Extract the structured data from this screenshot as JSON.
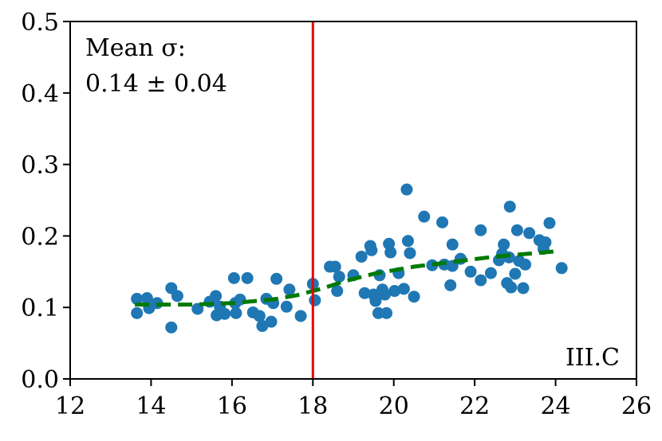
{
  "chart_data": {
    "type": "scatter",
    "xlim": [
      12,
      26
    ],
    "ylim": [
      0.0,
      0.5
    ],
    "xticks": [
      "12",
      "14",
      "16",
      "18",
      "20",
      "22",
      "24",
      "26"
    ],
    "yticks": [
      "0.0",
      "0.1",
      "0.2",
      "0.3",
      "0.4",
      "0.5"
    ],
    "annotation_lines": [
      "Mean σ:",
      "0.14 ± 0.04"
    ],
    "panel_label": "III.C",
    "vline_x": 18,
    "colors": {
      "points": "#1f77b4",
      "trend": "#007a00",
      "vline": "#e8000b"
    },
    "trend_line": {
      "style": "dashed",
      "x": [
        13.6,
        15.0,
        16.0,
        17.0,
        17.6,
        18.2,
        18.8,
        19.5,
        20.5,
        21.5,
        22.5,
        23.5,
        24.1
      ],
      "y": [
        0.104,
        0.104,
        0.106,
        0.111,
        0.117,
        0.126,
        0.137,
        0.147,
        0.157,
        0.164,
        0.171,
        0.176,
        0.179
      ]
    },
    "points": {
      "x": [
        13.65,
        13.65,
        13.9,
        13.95,
        14.15,
        14.5,
        14.5,
        14.65,
        15.15,
        15.45,
        15.6,
        15.62,
        15.7,
        15.82,
        16.05,
        16.08,
        16.1,
        16.2,
        16.38,
        16.52,
        16.68,
        16.75,
        16.85,
        16.97,
        17.02,
        17.1,
        17.35,
        17.42,
        17.7,
        18.0,
        18.05,
        18.42,
        18.55,
        18.6,
        18.65,
        19.0,
        19.2,
        19.28,
        19.42,
        19.45,
        19.5,
        19.55,
        19.62,
        19.65,
        19.72,
        19.78,
        19.82,
        19.88,
        19.92,
        20.02,
        20.12,
        20.25,
        20.32,
        20.35,
        20.4,
        20.5,
        20.75,
        20.95,
        21.2,
        21.25,
        21.4,
        21.45,
        21.45,
        21.65,
        21.9,
        22.15,
        22.15,
        22.4,
        22.6,
        22.68,
        22.72,
        22.8,
        22.85,
        22.87,
        22.9,
        23.0,
        23.05,
        23.1,
        23.2,
        23.25,
        23.35,
        23.6,
        23.7,
        23.75,
        23.85,
        24.15
      ],
      "y": [
        0.112,
        0.092,
        0.113,
        0.099,
        0.106,
        0.127,
        0.072,
        0.116,
        0.098,
        0.108,
        0.116,
        0.089,
        0.101,
        0.091,
        0.141,
        0.106,
        0.092,
        0.111,
        0.141,
        0.093,
        0.088,
        0.074,
        0.112,
        0.08,
        0.106,
        0.14,
        0.101,
        0.125,
        0.088,
        0.133,
        0.11,
        0.157,
        0.157,
        0.123,
        0.143,
        0.145,
        0.171,
        0.12,
        0.186,
        0.18,
        0.118,
        0.109,
        0.092,
        0.145,
        0.125,
        0.118,
        0.092,
        0.189,
        0.177,
        0.123,
        0.148,
        0.126,
        0.265,
        0.193,
        0.176,
        0.115,
        0.227,
        0.159,
        0.219,
        0.16,
        0.131,
        0.188,
        0.158,
        0.168,
        0.15,
        0.138,
        0.208,
        0.148,
        0.166,
        0.175,
        0.188,
        0.134,
        0.17,
        0.241,
        0.128,
        0.147,
        0.208,
        0.165,
        0.127,
        0.16,
        0.204,
        0.194,
        0.182,
        0.191,
        0.218,
        0.155
      ]
    }
  }
}
